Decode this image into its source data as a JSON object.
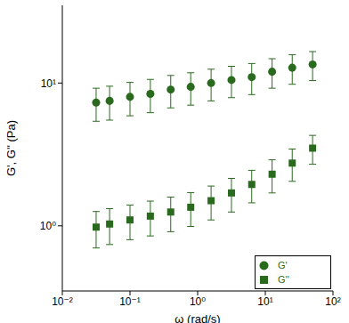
{
  "chart_data": {
    "type": "scatter",
    "x_label": "ω (rad/s)",
    "y_label": "G', G'' (Pa)",
    "log": true,
    "legend": "lower right",
    "xlim": [
      0.01,
      100
    ],
    "xticks": [
      {
        "value": 0.01,
        "label": "10⁻²"
      },
      {
        "value": 0.1,
        "label": "10⁻¹"
      },
      {
        "value": 1,
        "label": "10⁰"
      },
      {
        "value": 10,
        "label": "10¹"
      },
      {
        "value": 100,
        "label": "10²"
      }
    ],
    "ylim": [
      0.35,
      35
    ],
    "yticks": [
      {
        "value": 1,
        "label": "10⁰"
      },
      {
        "value": 10,
        "label": "10¹"
      }
    ],
    "x": [
      0.0316,
      0.05,
      0.1,
      0.2,
      0.4,
      0.79,
      1.58,
      3.16,
      6.3,
      12.6,
      25,
      50
    ],
    "series": [
      {
        "name": "G'",
        "color": "#2a6a1e",
        "marker": "circle",
        "values": [
          7.3,
          7.5,
          8.0,
          8.4,
          9.0,
          9.4,
          10,
          10.5,
          11,
          12,
          12.8,
          13.5
        ],
        "errors": [
          1.9,
          2.0,
          2.1,
          2.2,
          2.3,
          2.4,
          2.5,
          2.6,
          2.7,
          2.8,
          3.0,
          3.1
        ]
      },
      {
        "name": "G''",
        "color": "#2a6a1e",
        "marker": "square",
        "values": [
          0.98,
          1.03,
          1.1,
          1.17,
          1.25,
          1.35,
          1.5,
          1.7,
          1.95,
          2.3,
          2.75,
          3.5
        ],
        "errors": [
          0.28,
          0.29,
          0.3,
          0.32,
          0.34,
          0.36,
          0.4,
          0.45,
          0.5,
          0.6,
          0.7,
          0.8
        ]
      }
    ]
  }
}
